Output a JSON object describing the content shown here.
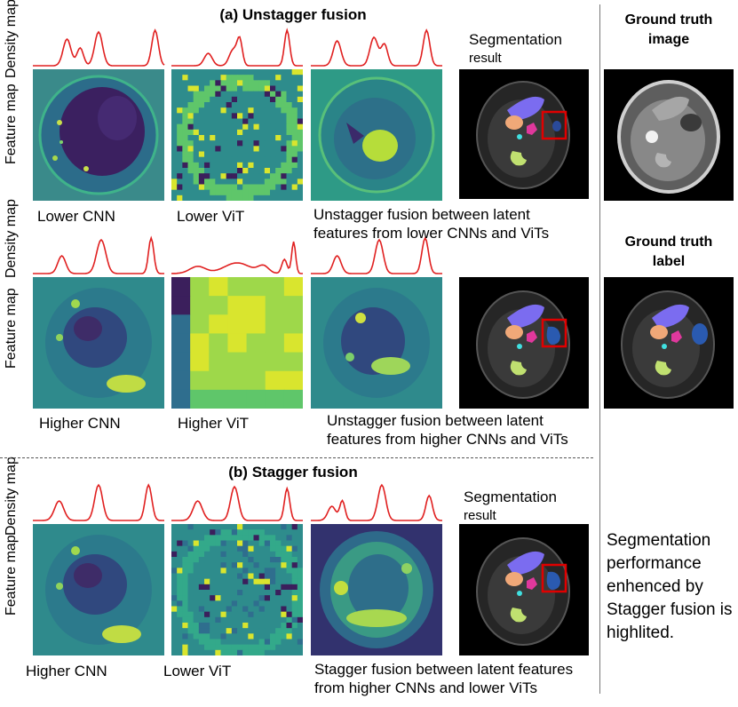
{
  "unstagger": {
    "title": "(a) Unstagger fusion",
    "seg_label_1": "Segmentation",
    "seg_label_2": "result",
    "row1": {
      "cap_a": "Lower CNN",
      "cap_b": "Lower ViT",
      "cap_c_1": "Unstagger fusion between latent",
      "cap_c_2": "features from lower CNNs and ViTs"
    },
    "row2": {
      "cap_a": "Higher CNN",
      "cap_b": "Higher ViT",
      "cap_c_1": "Unstagger fusion between latent",
      "cap_c_2": "features from higher CNNs and ViTs"
    }
  },
  "stagger": {
    "title": "(b) Stagger fusion",
    "seg_label_1": "Segmentation",
    "seg_label_2": "result",
    "cap_a": "Higher CNN",
    "cap_b": "Lower ViT",
    "cap_c_1": "Stagger fusion between latent features",
    "cap_c_2": "from higher CNNs and lower ViTs"
  },
  "axis": {
    "density": "Density map",
    "feature": "Feature map"
  },
  "ground_truth": {
    "image_title_1": "Ground truth",
    "image_title_2": "image",
    "label_title_1": "Ground truth",
    "label_title_2": "label"
  },
  "note": {
    "line1": "Segmentation",
    "line2": "performance",
    "line3": "enhenced by",
    "line4": "Stagger fusion is",
    "line5": "highlited."
  },
  "colors": {
    "density_curve": "#e02020",
    "viridis_dark": "#3b1f5c",
    "viridis_mid": "#2e8c8c",
    "viridis_light": "#d9e52e",
    "highlight_box": "#e00000"
  }
}
